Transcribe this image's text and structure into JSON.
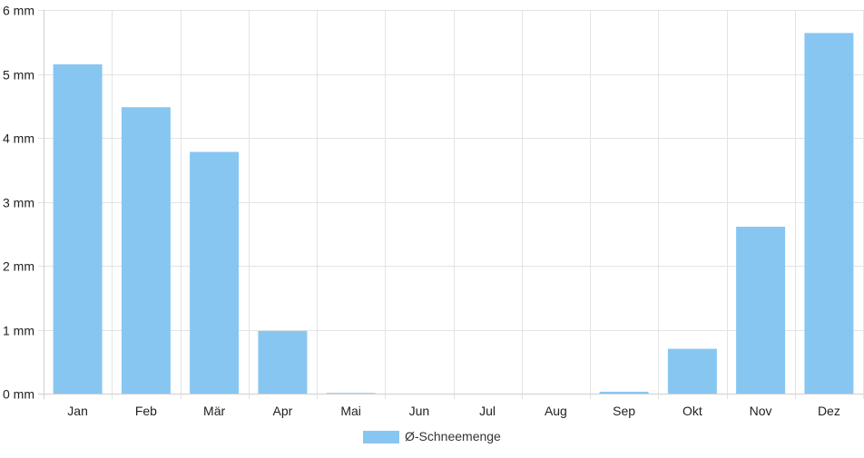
{
  "chart_data": {
    "type": "bar",
    "categories": [
      "Jan",
      "Feb",
      "Mär",
      "Apr",
      "Mai",
      "Jun",
      "Jul",
      "Aug",
      "Sep",
      "Okt",
      "Nov",
      "Dez"
    ],
    "series": [
      {
        "name": "Ø-Schneemenge",
        "values": [
          5.15,
          4.48,
          3.78,
          0.98,
          0.01,
          0,
          0,
          0,
          0.03,
          0.7,
          2.61,
          5.64
        ],
        "color": "#88c6f2"
      }
    ],
    "y_ticks": [
      "0 mm",
      "1 mm",
      "2 mm",
      "3 mm",
      "4 mm",
      "5 mm",
      "6 mm"
    ],
    "ylim": [
      0,
      6
    ],
    "grid": true,
    "legend_position": "bottom-center"
  }
}
